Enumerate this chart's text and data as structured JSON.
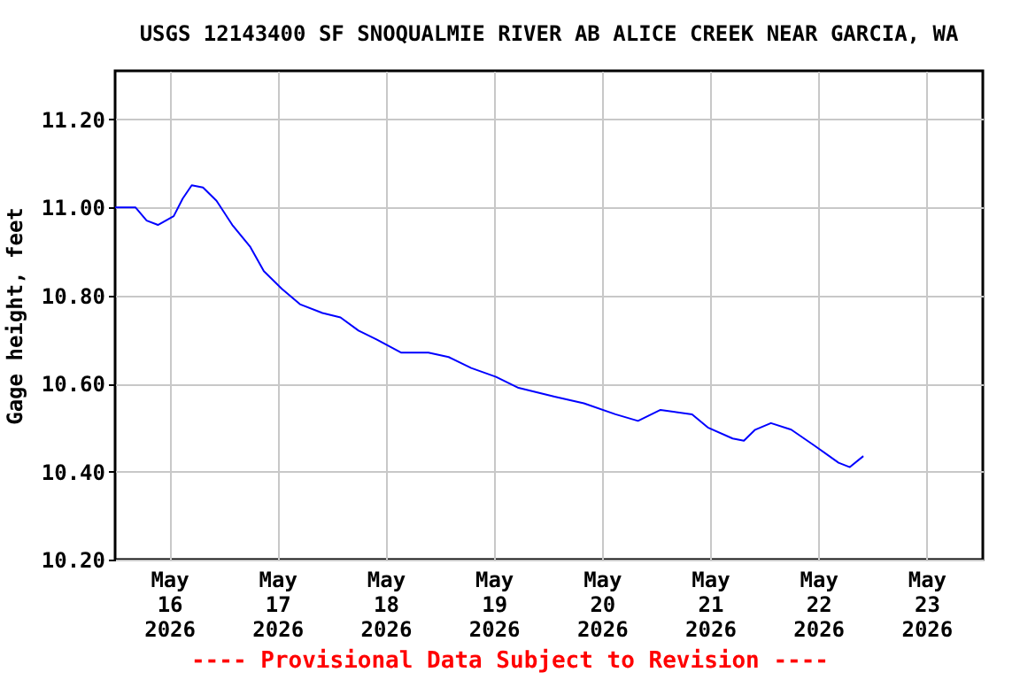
{
  "chart_data": {
    "type": "line",
    "title": "USGS 12143400 SF SNOQUALMIE RIVER AB ALICE CREEK NEAR GARCIA, WA",
    "ylabel": "Gage height, feet",
    "annotations": [
      "---- Provisional Data Subject to Revision ----"
    ],
    "x": [
      "2026-05-15T12:00",
      "2026-05-15T16:30",
      "2026-05-15T19:00",
      "2026-05-15T21:30",
      "2026-05-16T01:00",
      "2026-05-16T03:00",
      "2026-05-16T05:00",
      "2026-05-16T07:30",
      "2026-05-16T10:30",
      "2026-05-16T14:00",
      "2026-05-16T18:00",
      "2026-05-16T21:00",
      "2026-05-17T01:00",
      "2026-05-17T05:00",
      "2026-05-17T10:00",
      "2026-05-17T14:00",
      "2026-05-17T18:00",
      "2026-05-17T22:00",
      "2026-05-18T03:30",
      "2026-05-18T09:30",
      "2026-05-18T14:00",
      "2026-05-18T19:00",
      "2026-05-19T00:30",
      "2026-05-19T05:30",
      "2026-05-19T13:30",
      "2026-05-19T20:00",
      "2026-05-20T03:00",
      "2026-05-20T08:00",
      "2026-05-20T13:00",
      "2026-05-20T20:00",
      "2026-05-20T23:30",
      "2026-05-21T05:00",
      "2026-05-21T07:30",
      "2026-05-21T10:00",
      "2026-05-21T13:30",
      "2026-05-21T18:00",
      "2026-05-21T23:00",
      "2026-05-22T04:30",
      "2026-05-22T07:00",
      "2026-05-22T10:00"
    ],
    "series": [
      {
        "color": "#0000ff",
        "values": [
          11.0,
          11.0,
          10.97,
          10.96,
          10.98,
          11.02,
          11.05,
          11.045,
          11.015,
          10.96,
          10.91,
          10.855,
          10.815,
          10.78,
          10.76,
          10.75,
          10.72,
          10.7,
          10.67,
          10.67,
          10.66,
          10.635,
          10.615,
          10.59,
          10.57,
          10.555,
          10.53,
          10.515,
          10.54,
          10.53,
          10.5,
          10.475,
          10.47,
          10.495,
          10.51,
          10.495,
          10.46,
          10.42,
          10.41,
          10.435
        ]
      }
    ],
    "xlim": [
      "2026-05-15T12:00",
      "2026-05-23T12:30"
    ],
    "xticks": [
      {
        "value": "2026-05-16",
        "label": "May 16 2026"
      },
      {
        "value": "2026-05-17",
        "label": "May 17 2026"
      },
      {
        "value": "2026-05-18",
        "label": "May 18 2026"
      },
      {
        "value": "2026-05-19",
        "label": "May 19 2026"
      },
      {
        "value": "2026-05-20",
        "label": "May 20 2026"
      },
      {
        "value": "2026-05-21",
        "label": "May 21 2026"
      },
      {
        "value": "2026-05-22",
        "label": "May 22 2026"
      },
      {
        "value": "2026-05-23",
        "label": "May 23 2026"
      }
    ],
    "ylim": [
      10.2,
      11.31
    ],
    "yticks": [
      {
        "value": 10.2,
        "label": "10.20"
      },
      {
        "value": 10.4,
        "label": "10.40"
      },
      {
        "value": 10.6,
        "label": "10.60"
      },
      {
        "value": 10.8,
        "label": "10.80"
      },
      {
        "value": 11.0,
        "label": "11.00"
      },
      {
        "value": 11.2,
        "label": "11.20"
      }
    ],
    "grid": true,
    "line_style": "solid"
  }
}
